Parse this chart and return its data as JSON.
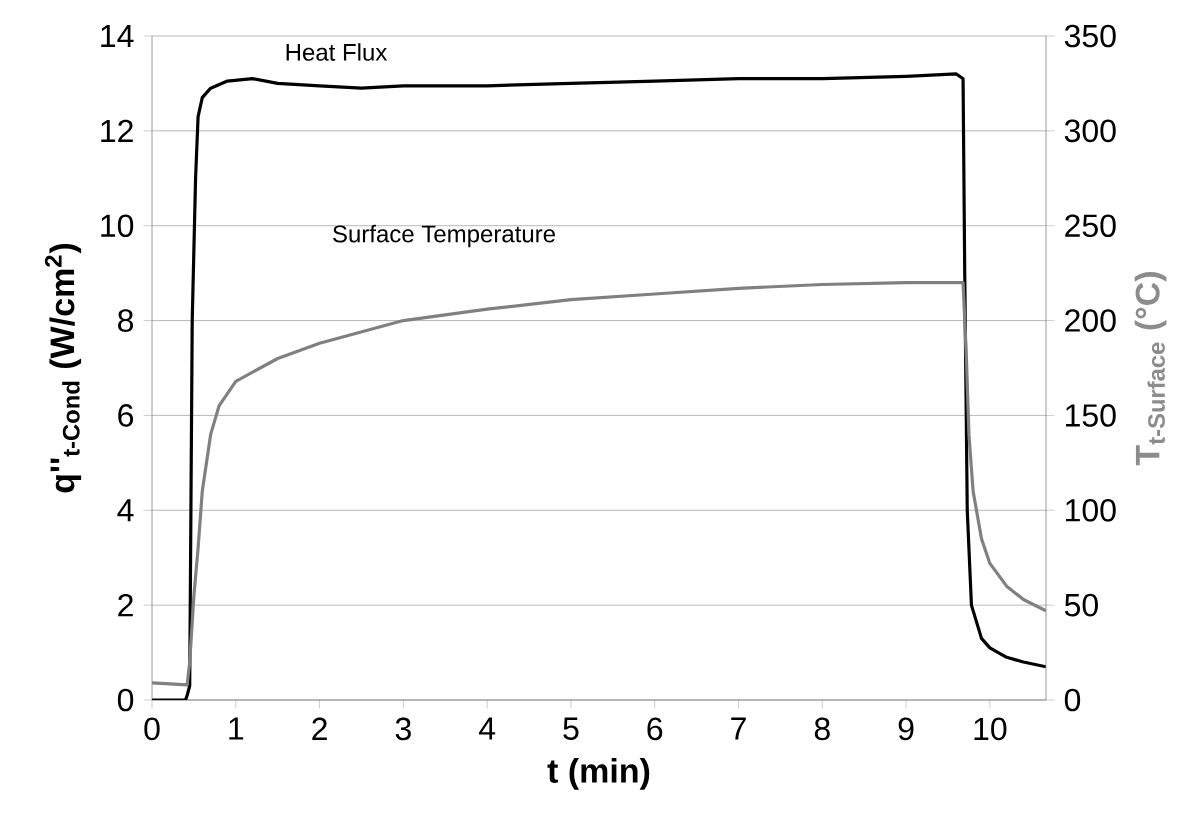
{
  "chart_data": {
    "type": "line",
    "xlabel": "t (min)",
    "ylabel": "q''$_{t-Cond}$ (W/cm$^{2}$)",
    "y2label": "T$_{t-Surface}$ (°C)",
    "xlim": [
      0,
      10.67
    ],
    "xticks": [
      0,
      1,
      2,
      3,
      4,
      5,
      6,
      7,
      8,
      9,
      10
    ],
    "ylim": [
      0,
      14
    ],
    "yticks": [
      0,
      2,
      4,
      6,
      8,
      10,
      12,
      14
    ],
    "y2lim": [
      0,
      350
    ],
    "y2ticks": [
      0,
      50,
      100,
      150,
      200,
      250,
      300,
      350
    ],
    "grid": "y",
    "legend": false,
    "marker": "none",
    "line_style": "solid",
    "series": [
      {
        "name": "Heat Flux",
        "color": "#000000",
        "x": [
          0,
          0.4,
          0.42,
          0.45,
          0.48,
          0.52,
          0.55,
          0.6,
          0.7,
          0.9,
          1.2,
          1.5,
          2,
          2.5,
          3,
          4,
          5,
          6,
          7,
          8,
          9,
          9.6,
          9.68,
          9.7,
          9.73,
          9.78,
          9.9,
          10,
          10.2,
          10.4,
          10.67
        ],
        "values": [
          0,
          0,
          0.1,
          0.3,
          8,
          11,
          12.3,
          12.7,
          12.9,
          13.05,
          13.1,
          13.0,
          12.95,
          12.9,
          12.95,
          12.95,
          13.0,
          13.05,
          13.1,
          13.1,
          13.15,
          13.2,
          13.1,
          9,
          4,
          2,
          1.3,
          1.1,
          0.9,
          0.8,
          0.7
        ]
      },
      {
        "name": "Surface Temperature",
        "color": "#808080",
        "axis": "y2",
        "x": [
          0,
          0.42,
          0.45,
          0.5,
          0.55,
          0.6,
          0.7,
          0.8,
          1,
          1.5,
          2,
          3,
          4,
          5,
          6,
          7,
          8,
          9,
          9.68,
          9.72,
          9.75,
          9.8,
          9.9,
          10,
          10.2,
          10.4,
          10.67
        ],
        "values": [
          9,
          8,
          20,
          55,
          80,
          110,
          140,
          155,
          168,
          180,
          188,
          200,
          206,
          211,
          214,
          217,
          219,
          220,
          220,
          180,
          140,
          110,
          85,
          72,
          60,
          53,
          47
        ]
      }
    ]
  }
}
